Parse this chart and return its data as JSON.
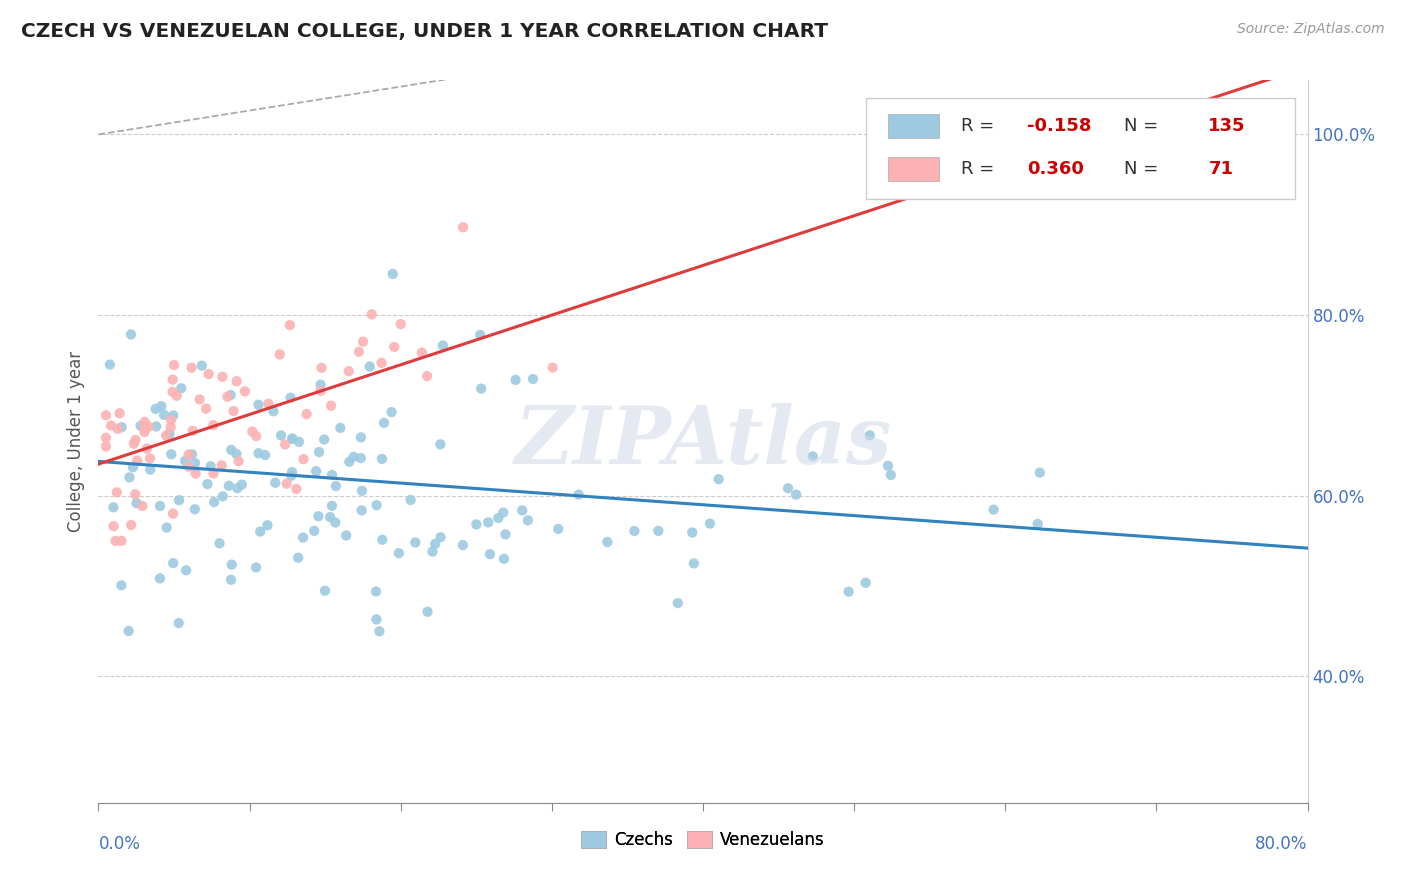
{
  "title": "CZECH VS VENEZUELAN COLLEGE, UNDER 1 YEAR CORRELATION CHART",
  "source": "Source: ZipAtlas.com",
  "ylabel": "College, Under 1 year",
  "xlim": [
    0.0,
    0.8
  ],
  "ylim": [
    0.26,
    1.06
  ],
  "yticks": [
    0.4,
    0.6,
    0.8,
    1.0
  ],
  "ytick_labels": [
    "40.0%",
    "60.0%",
    "80.0%",
    "100.0%"
  ],
  "xtick_positions": [
    0.0,
    0.1,
    0.2,
    0.3,
    0.4,
    0.5,
    0.6,
    0.7,
    0.8
  ],
  "legend_r_czech": "-0.158",
  "legend_n_czech": "135",
  "legend_r_venezuelan": "0.360",
  "legend_n_venezuelan": "71",
  "czech_color": "#9ecae1",
  "venezuelan_color": "#fcb2b2",
  "czech_line_color": "#3182bd",
  "venezuelan_line_color": "#de3c3c",
  "watermark": "ZIPAtlas",
  "background_color": "#ffffff",
  "czech_intercept": 0.638,
  "czech_slope": -0.12,
  "venezuelan_intercept": 0.635,
  "venezuelan_slope": 0.55,
  "dashed_line_slope": 0.265,
  "dashed_line_intercept": 1.0
}
